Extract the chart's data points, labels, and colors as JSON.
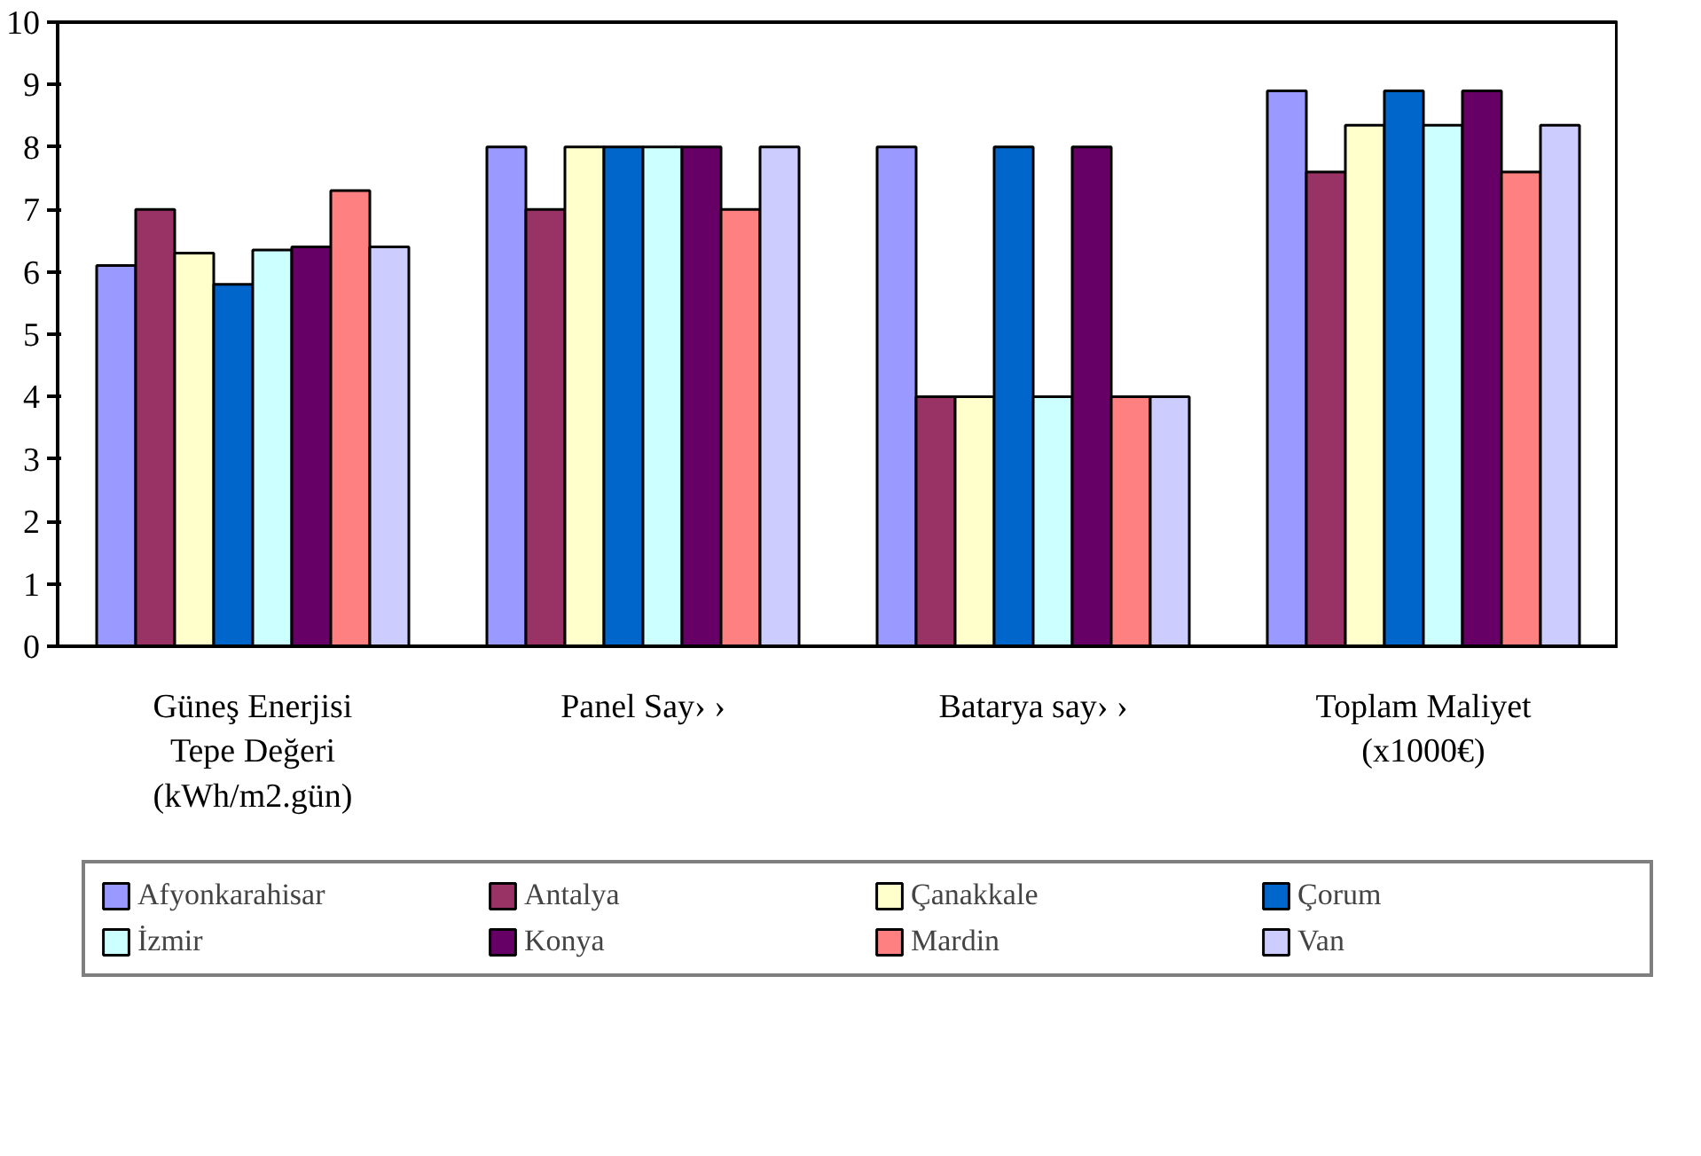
{
  "chart_data": {
    "type": "bar",
    "categories": [
      "Güneş Enerjisi Tepe Değeri (kWh/m2.gün)",
      "Panel Say› ›",
      "Batarya say› ›",
      "Toplam Maliyet (x1000€)"
    ],
    "series": [
      {
        "name": "Afyonkarahisar",
        "color": "#9999ff",
        "values": [
          6.1,
          8,
          8,
          8.9
        ]
      },
      {
        "name": "Antalya",
        "color": "#993366",
        "values": [
          7.0,
          7,
          4,
          7.6
        ]
      },
      {
        "name": "Çanakkale",
        "color": "#ffffcc",
        "values": [
          6.3,
          8,
          4,
          8.35
        ]
      },
      {
        "name": "Çorum",
        "color": "#0066cc",
        "values": [
          5.8,
          8,
          8,
          8.9
        ]
      },
      {
        "name": "İzmir",
        "color": "#ccffff",
        "values": [
          6.35,
          8,
          4,
          8.35
        ]
      },
      {
        "name": "Konya",
        "color": "#660066",
        "values": [
          6.4,
          8,
          8,
          8.9
        ]
      },
      {
        "name": "Mardin",
        "color": "#ff8080",
        "values": [
          7.3,
          7,
          4,
          7.6
        ]
      },
      {
        "name": "Van",
        "color": "#ccccff",
        "values": [
          6.4,
          8,
          4,
          8.35
        ]
      }
    ],
    "ylim": [
      0,
      10
    ],
    "yticks": [
      0,
      1,
      2,
      3,
      4,
      5,
      6,
      7,
      8,
      9,
      10
    ],
    "grid": false,
    "legend": "bottom"
  }
}
